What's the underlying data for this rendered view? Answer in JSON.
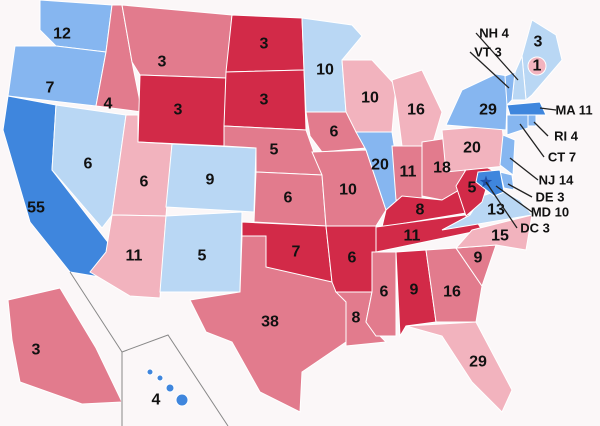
{
  "colors": {
    "strong_red": "#d22a48",
    "mid_red": "#e27b8d",
    "light_red": "#f2b3be",
    "light_blue": "#b9d7f4",
    "mid_blue": "#86b6f0",
    "strong_blue": "#3f86dd"
  },
  "states": [
    {
      "id": "WA",
      "votes": "12",
      "shade": "mid_blue"
    },
    {
      "id": "OR",
      "votes": "7",
      "shade": "mid_blue"
    },
    {
      "id": "CA",
      "votes": "55",
      "shade": "strong_blue"
    },
    {
      "id": "NV",
      "votes": "6",
      "shade": "light_blue"
    },
    {
      "id": "ID",
      "votes": "4",
      "shade": "mid_red"
    },
    {
      "id": "MT",
      "votes": "3",
      "shade": "mid_red"
    },
    {
      "id": "WY",
      "votes": "3",
      "shade": "strong_red"
    },
    {
      "id": "UT",
      "votes": "6",
      "shade": "light_red"
    },
    {
      "id": "CO",
      "votes": "9",
      "shade": "light_blue"
    },
    {
      "id": "AZ",
      "votes": "11",
      "shade": "light_red"
    },
    {
      "id": "NM",
      "votes": "5",
      "shade": "light_blue"
    },
    {
      "id": "ND",
      "votes": "3",
      "shade": "strong_red"
    },
    {
      "id": "SD",
      "votes": "3",
      "shade": "strong_red"
    },
    {
      "id": "NE",
      "votes": "5",
      "shade": "mid_red"
    },
    {
      "id": "KS",
      "votes": "6",
      "shade": "mid_red"
    },
    {
      "id": "OK",
      "votes": "7",
      "shade": "strong_red"
    },
    {
      "id": "TX",
      "votes": "38",
      "shade": "mid_red"
    },
    {
      "id": "MN",
      "votes": "10",
      "shade": "light_blue"
    },
    {
      "id": "IA",
      "votes": "6",
      "shade": "mid_red"
    },
    {
      "id": "MO",
      "votes": "10",
      "shade": "mid_red"
    },
    {
      "id": "AR",
      "votes": "6",
      "shade": "strong_red"
    },
    {
      "id": "LA",
      "votes": "8",
      "shade": "mid_red"
    },
    {
      "id": "WI",
      "votes": "10",
      "shade": "light_red"
    },
    {
      "id": "IL",
      "votes": "20",
      "shade": "mid_blue"
    },
    {
      "id": "MI",
      "votes": "16",
      "shade": "light_red"
    },
    {
      "id": "IN",
      "votes": "11",
      "shade": "mid_red"
    },
    {
      "id": "OH",
      "votes": "18",
      "shade": "mid_red"
    },
    {
      "id": "KY",
      "votes": "8",
      "shade": "strong_red"
    },
    {
      "id": "TN",
      "votes": "11",
      "shade": "strong_red"
    },
    {
      "id": "MS",
      "votes": "6",
      "shade": "mid_red"
    },
    {
      "id": "AL",
      "votes": "9",
      "shade": "strong_red"
    },
    {
      "id": "GA",
      "votes": "16",
      "shade": "mid_red"
    },
    {
      "id": "FL",
      "votes": "29",
      "shade": "light_red"
    },
    {
      "id": "SC",
      "votes": "9",
      "shade": "mid_red"
    },
    {
      "id": "NC",
      "votes": "15",
      "shade": "light_red"
    },
    {
      "id": "VA",
      "votes": "13",
      "shade": "light_blue"
    },
    {
      "id": "WV",
      "votes": "5",
      "shade": "strong_red"
    },
    {
      "id": "PA",
      "votes": "20",
      "shade": "light_red"
    },
    {
      "id": "NY",
      "votes": "29",
      "shade": "mid_blue"
    },
    {
      "id": "ME",
      "votes": "3",
      "shade": "light_blue"
    },
    {
      "id": "ME2",
      "votes": "1",
      "shade": "light_red"
    },
    {
      "id": "AK",
      "votes": "3",
      "shade": "mid_red"
    },
    {
      "id": "HI",
      "votes": "4",
      "shade": "strong_blue"
    }
  ],
  "callouts": [
    {
      "id": "NH",
      "text": "NH 4",
      "shade": "light_blue"
    },
    {
      "id": "VT",
      "text": "VT 3",
      "shade": "mid_blue"
    },
    {
      "id": "MA",
      "text": "MA 11",
      "shade": "strong_blue"
    },
    {
      "id": "RI",
      "text": "RI 4",
      "shade": "mid_blue"
    },
    {
      "id": "CT",
      "text": "CT 7",
      "shade": "mid_blue"
    },
    {
      "id": "NJ",
      "text": "NJ 14",
      "shade": "mid_blue"
    },
    {
      "id": "DE",
      "text": "DE 3",
      "shade": "mid_blue"
    },
    {
      "id": "MD",
      "text": "MD 10",
      "shade": "strong_blue"
    },
    {
      "id": "DC",
      "text": "DC 3",
      "shade": "strong_blue"
    }
  ]
}
